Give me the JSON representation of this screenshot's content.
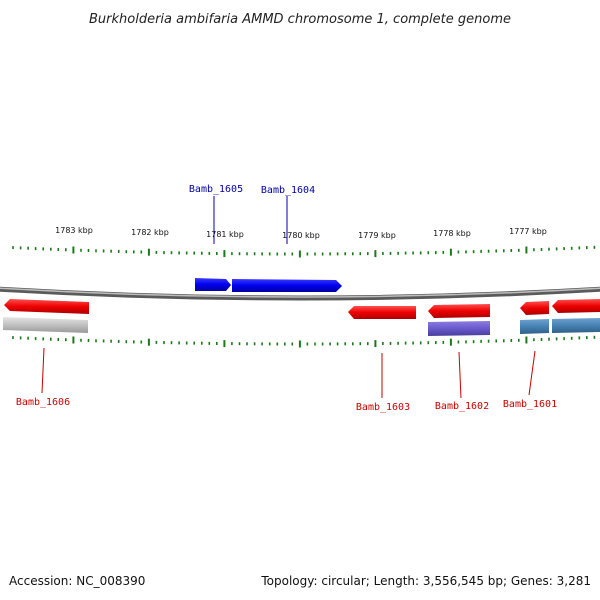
{
  "title": "Burkholderia ambifaria AMMD chromosome 1, complete genome",
  "footer": {
    "accession": "Accession: NC_008390",
    "summary": "Topology: circular; Length: 3,556,545 bp; Genes: 3,281"
  },
  "scale": {
    "ticks": [
      "1783 kbp",
      "1782 kbp",
      "1781 kbp",
      "1780 kbp",
      "1779 kbp",
      "1778 kbp",
      "1777 kbp"
    ]
  },
  "genes": {
    "forward": [
      {
        "name": "Bamb_1605",
        "color": "#0000ee"
      },
      {
        "name": "Bamb_1604",
        "color": "#0000ee"
      }
    ],
    "reverse": [
      {
        "name": "Bamb_1606",
        "color": "#ee0000",
        "product_color": "#c0c0c0"
      },
      {
        "name": "Bamb_1603",
        "color": "#ee0000"
      },
      {
        "name": "Bamb_1602",
        "color": "#ee0000",
        "product_color": "#6a5acd"
      },
      {
        "name": "Bamb_1601",
        "color": "#ee0000",
        "product_color": "#4682b4"
      }
    ]
  },
  "colors": {
    "backbone": "#808080",
    "tick": "#1a7a1a",
    "forward_label": "#0000aa",
    "reverse_label": "#cc0000"
  }
}
